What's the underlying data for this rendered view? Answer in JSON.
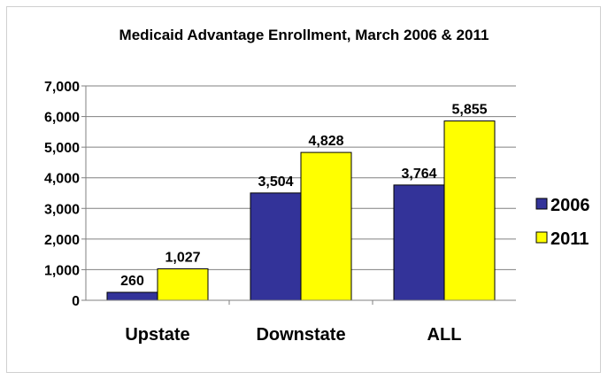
{
  "chart_data": {
    "type": "bar",
    "title": "Medicaid Advantage Enrollment,  March 2006 & 2011",
    "categories": [
      "Upstate",
      "Downstate",
      "ALL"
    ],
    "series": [
      {
        "name": "2006",
        "color": "#333399",
        "values": [
          260,
          3504,
          3764
        ],
        "labels": [
          "260",
          "3,504",
          "3,764"
        ]
      },
      {
        "name": "2011",
        "color": "#FFFF00",
        "values": [
          1027,
          4828,
          5855
        ],
        "labels": [
          "1,027",
          "4,828",
          "5,855"
        ]
      }
    ],
    "ylim": [
      0,
      7000
    ],
    "yticks": [
      0,
      1000,
      2000,
      3000,
      4000,
      5000,
      6000,
      7000
    ],
    "ytick_labels": [
      "0",
      "1,000",
      "2,000",
      "3,000",
      "4,000",
      "5,000",
      "6,000",
      "7,000"
    ],
    "grid": true,
    "legend": "right",
    "xlabel": "",
    "ylabel": ""
  }
}
